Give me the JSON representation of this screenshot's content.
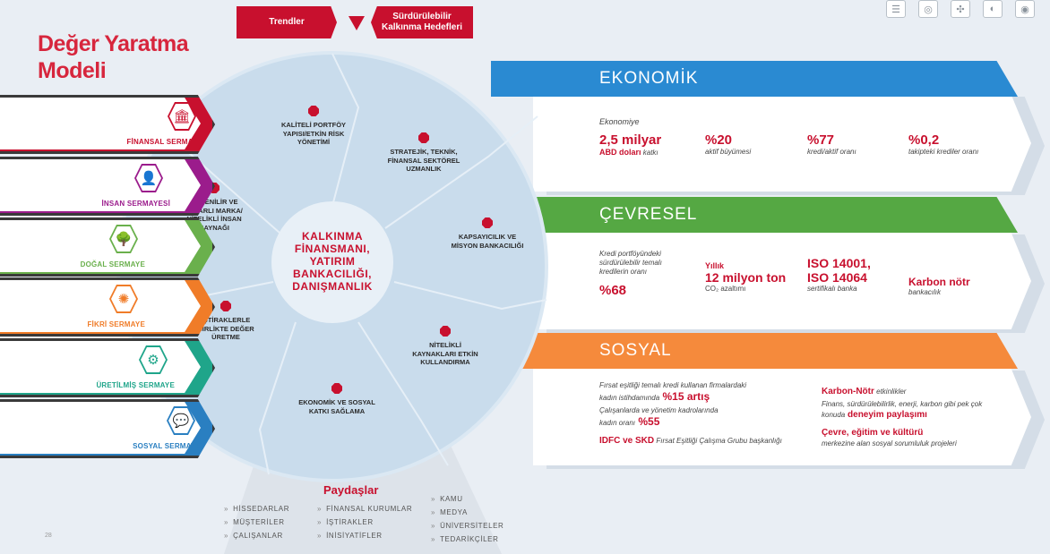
{
  "title": {
    "line1": "Değer Yaratma",
    "line2": "Modeli"
  },
  "nav": {
    "trendler": "Trendler",
    "sdg": "Sürdürülebilir\nKalkınma Hedefleri"
  },
  "toolbar": {
    "icons": [
      "list-icon",
      "globe-icon",
      "network-icon",
      "compass-icon",
      "target-icon"
    ]
  },
  "capitals": [
    {
      "label": "FİNANSAL SERMAYE",
      "color": "#c8102e",
      "icon": "bank-icon",
      "glyph": "🏛"
    },
    {
      "label": "İNSAN SERMAYESİ",
      "color": "#9b1c8c",
      "icon": "person-icon",
      "glyph": "👤"
    },
    {
      "label": "DOĞAL SERMAYE",
      "color": "#6ab04c",
      "icon": "tree-icon",
      "glyph": "🌳"
    },
    {
      "label": "FİKRİ SERMAYE",
      "color": "#f07c28",
      "icon": "brain-icon",
      "glyph": "✺"
    },
    {
      "label": "ÜRETİLMİŞ SERMAYE",
      "color": "#1fa58a",
      "icon": "gear-icon",
      "glyph": "⚙"
    },
    {
      "label": "SOSYAL SERMAYE",
      "color": "#2a7fc1",
      "icon": "chat-icon",
      "glyph": "💬"
    }
  ],
  "wheel": {
    "center": [
      "KALKINMA",
      "FİNANSMANI,",
      "YATIRIM",
      "BANKACILIĞI,",
      "DANIŞMANLIK"
    ],
    "segments": [
      {
        "lines": [
          "KALİTELİ PORTFÖY",
          "YAPISI/ETKİN RİSK",
          "YÖNETİMİ"
        ]
      },
      {
        "lines": [
          "STRATEJİK, TEKNİK,",
          "FİNANSAL SEKTÖREL",
          "UZMANLIK"
        ]
      },
      {
        "lines": [
          "KAPSAYICILIK VE",
          "MİSYON BANKACILIĞI"
        ]
      },
      {
        "lines": [
          "NİTELİKLİ",
          "KAYNAKLARI ETKİN",
          "KULLANDIRMA"
        ]
      },
      {
        "lines": [
          "EKONOMİK VE SOSYAL",
          "KATKI SAĞLAMA"
        ]
      },
      {
        "lines": [
          "İŞTİRAKLERLE",
          "BİRLİKTE DEĞER",
          "ÜRETME"
        ]
      },
      {
        "lines": [
          "GÜVENİLİR VE",
          "İTİBARLI MARKA/",
          "NİTELİKLİ İNSAN",
          "KAYNAĞI"
        ]
      }
    ]
  },
  "ekonomik": {
    "title": "EKONOMİK",
    "color": "#2a8ad2",
    "intro": "Ekonomiye",
    "items": [
      {
        "big": "2,5 milyar",
        "sub_red": "ABD doları",
        "sub": " katkı"
      },
      {
        "big": "%20",
        "sub": "aktif büyümesi"
      },
      {
        "big": "%77",
        "sub": "kredi/aktif oranı"
      },
      {
        "big": "%0,2",
        "sub": "takipteki krediler oranı"
      }
    ]
  },
  "cevresel": {
    "title": "ÇEVRESEL",
    "color": "#55a843",
    "a_lines": [
      "Kredi portföyündeki",
      "sürdürülebilir temalı",
      "kredilerin oranı"
    ],
    "a_big": "%68",
    "b_top": "Yıllık",
    "b_big": "12 milyon ton",
    "b_sub": "CO₂ azaltımı",
    "c_big1": "ISO 14001,",
    "c_big2": "ISO 14064",
    "c_sub": "sertifikalı banka",
    "d_big": "Karbon nötr",
    "d_sub": "bankacılık"
  },
  "sosyal": {
    "title": "SOSYAL",
    "color": "#f58a3c",
    "l1": "Fırsat eşitliği temalı kredi kullanan firmalardaki",
    "l2": "kadın istihdamında",
    "l2_red": " %15 artış",
    "l3": "Çalışanlarda ve yönetim kadrolarında",
    "l4": "kadın oranı",
    "l4_red": " %55",
    "l5_red": "IDFC ve SKD",
    "l5": " Fırsat Eşitliği Çalışma Grubu başkanlığı",
    "r1_red": "Karbon-Nötr",
    "r1": " etkinlikler",
    "r2": "Finans, sürdürülebilirlik, enerji, karbon gibi pek çok",
    "r3": "konuda",
    "r3_red": " deneyim paylaşımı",
    "r4_red": "Çevre, eğitim ve kültürü",
    "r5": "merkezine alan sosyal sorumluluk projeleri"
  },
  "stakeholders": {
    "title": "Paydaşlar",
    "col1": [
      "HİSSEDARLAR",
      "MÜŞTERİLER",
      "ÇALIŞANLAR"
    ],
    "col2": [
      "FİNANSAL KURUMLAR",
      "İŞTİRAKLER",
      "İNİSİYATİFLER"
    ],
    "col3": [
      "KAMU",
      "MEDYA",
      "ÜNİVERSİTELER",
      "TEDARİKÇİLER"
    ]
  },
  "page_number": "28"
}
